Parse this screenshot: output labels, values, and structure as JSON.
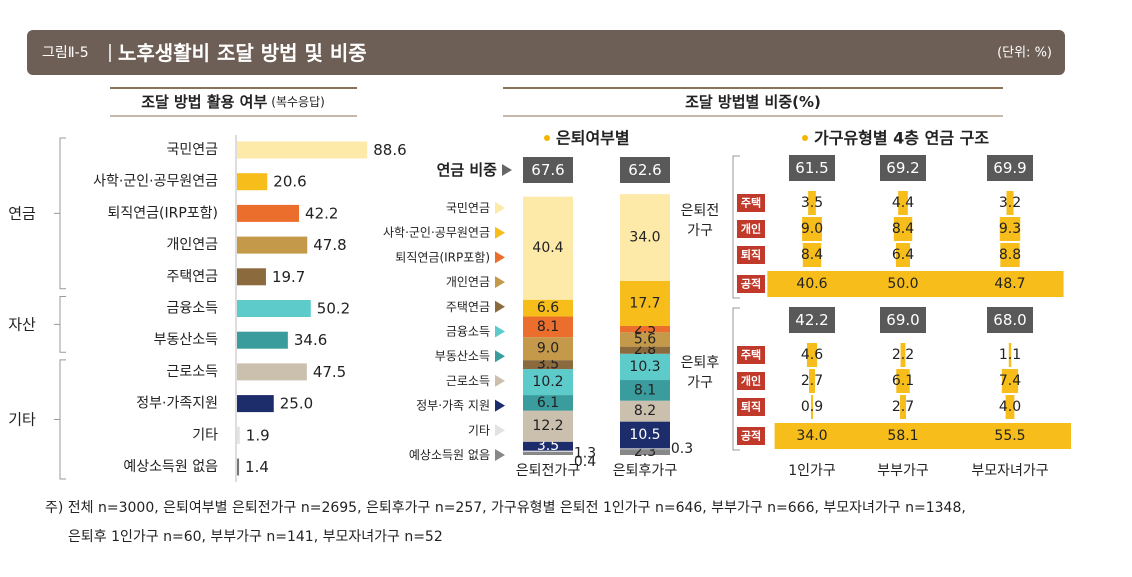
{
  "header": {
    "figure": "그림Ⅱ-5",
    "title": "노후생활비 조달 방법 및 비중",
    "unit": "(단위: %)"
  },
  "section_title": "조달 방법별 비중(%)",
  "notes": [
    "주) 전체 n=3000, 은퇴여부별 은퇴전가구 n=2695, 은퇴후가구 n=257, 가구유형별 은퇴전 1인가구 n=646, 부부가구 n=666, 부모자녀가구 n=1348,",
    "은퇴후 1인가구 n=60, 부부가구 n=141, 부모자녀가구 n=52"
  ],
  "chart_data": [
    {
      "type": "hbar",
      "title": "조달 방법 활용 여부",
      "subtitle": "(복수응답)",
      "groups": [
        {
          "name": "연금",
          "categories": [
            "국민연금",
            "사학·군인·공무원연금",
            "퇴직연금(IRP포함)",
            "개인연금",
            "주택연금"
          ],
          "values": [
            88.6,
            20.6,
            42.2,
            47.8,
            19.7
          ],
          "colors": [
            "#fde9a8",
            "#f7bd1a",
            "#ec6e2d",
            "#c49a4a",
            "#8b6a3e"
          ]
        },
        {
          "name": "자산",
          "categories": [
            "금융소득",
            "부동산소득"
          ],
          "values": [
            50.2,
            34.6
          ],
          "colors": [
            "#5ecbcb",
            "#3a9c9c"
          ]
        },
        {
          "name": "기타",
          "categories": [
            "근로소득",
            "정부·가족지원",
            "기타",
            "예상소득원 없음"
          ],
          "values": [
            47.5,
            25.0,
            1.9,
            1.4
          ],
          "value_labels": [
            "47.5",
            "25.0",
            "1.9",
            "1.4"
          ],
          "colors": [
            "#cbbfae",
            "#1d2c6b",
            "#e2e2e2",
            "#777777"
          ]
        }
      ]
    },
    {
      "type": "stacked_bar",
      "title": "은퇴여부별",
      "share_label": "연금 비중",
      "categories": [
        "은퇴전가구",
        "은퇴후가구"
      ],
      "share": [
        67.6,
        62.6
      ],
      "series": [
        {
          "name": "국민연금",
          "color": "#fde9a8",
          "values": [
            40.4,
            34.0
          ],
          "value_labels": [
            "40.4",
            "34.0"
          ]
        },
        {
          "name": "사학·군인·공무원연금",
          "color": "#f7bd1a",
          "values": [
            6.6,
            17.7
          ]
        },
        {
          "name": "퇴직연금(IRP포함)",
          "color": "#ec6e2d",
          "values": [
            8.1,
            2.5
          ]
        },
        {
          "name": "개인연금",
          "color": "#c49a4a",
          "values": [
            9.0,
            5.6
          ],
          "value_labels": [
            "9.0",
            "5.6"
          ]
        },
        {
          "name": "주택연금",
          "color": "#8b6a3e",
          "values": [
            3.5,
            2.8
          ]
        },
        {
          "name": "금융소득",
          "color": "#5ecbcb",
          "values": [
            10.2,
            10.3
          ]
        },
        {
          "name": "부동산소득",
          "color": "#3a9c9c",
          "values": [
            6.1,
            8.1
          ]
        },
        {
          "name": "근로소득",
          "color": "#cbbfae",
          "values": [
            12.2,
            8.2
          ]
        },
        {
          "name": "정부·가족 지원",
          "color": "#1d2c6b",
          "values": [
            3.5,
            10.5
          ]
        },
        {
          "name": "기타",
          "color": "#e2e2e2",
          "values": [
            0.4,
            0.3
          ]
        },
        {
          "name": "예상소득원 없음",
          "color": "#888888",
          "values": [
            1.3,
            2.3
          ]
        }
      ]
    },
    {
      "type": "tier",
      "title": "가구유형별 4층 연금 구조",
      "categories": [
        "1인가구",
        "부부가구",
        "부모자녀가구"
      ],
      "color": "#f7bd1a",
      "badge_color": "#c0392b",
      "groups": [
        {
          "name": "은퇴전 가구",
          "totals": [
            61.5,
            69.2,
            69.9
          ],
          "series": [
            {
              "name": "주택",
              "values": [
                3.5,
                4.4,
                3.2
              ]
            },
            {
              "name": "개인",
              "values": [
                9.0,
                8.4,
                9.3
              ],
              "value_labels": [
                "9.0",
                "8.4",
                "9.3"
              ]
            },
            {
              "name": "퇴직",
              "values": [
                8.4,
                6.4,
                8.8
              ]
            },
            {
              "name": "공적",
              "values": [
                40.6,
                50.0,
                48.7
              ],
              "value_labels": [
                "40.6",
                "50.0",
                "48.7"
              ]
            }
          ]
        },
        {
          "name": "은퇴후 가구",
          "totals": [
            42.2,
            69.0,
            68.0
          ],
          "total_labels": [
            "42.2",
            "69.0",
            "68.0"
          ],
          "series": [
            {
              "name": "주택",
              "values": [
                4.6,
                2.2,
                1.1
              ]
            },
            {
              "name": "개인",
              "values": [
                2.7,
                6.1,
                7.4
              ]
            },
            {
              "name": "퇴직",
              "values": [
                0.9,
                2.7,
                4.0
              ],
              "value_labels": [
                "0.9",
                "2.7",
                "4.0"
              ]
            },
            {
              "name": "공적",
              "values": [
                34.0,
                58.1,
                55.5
              ],
              "value_labels": [
                "34.0",
                "58.1",
                "55.5"
              ]
            }
          ]
        }
      ]
    }
  ]
}
